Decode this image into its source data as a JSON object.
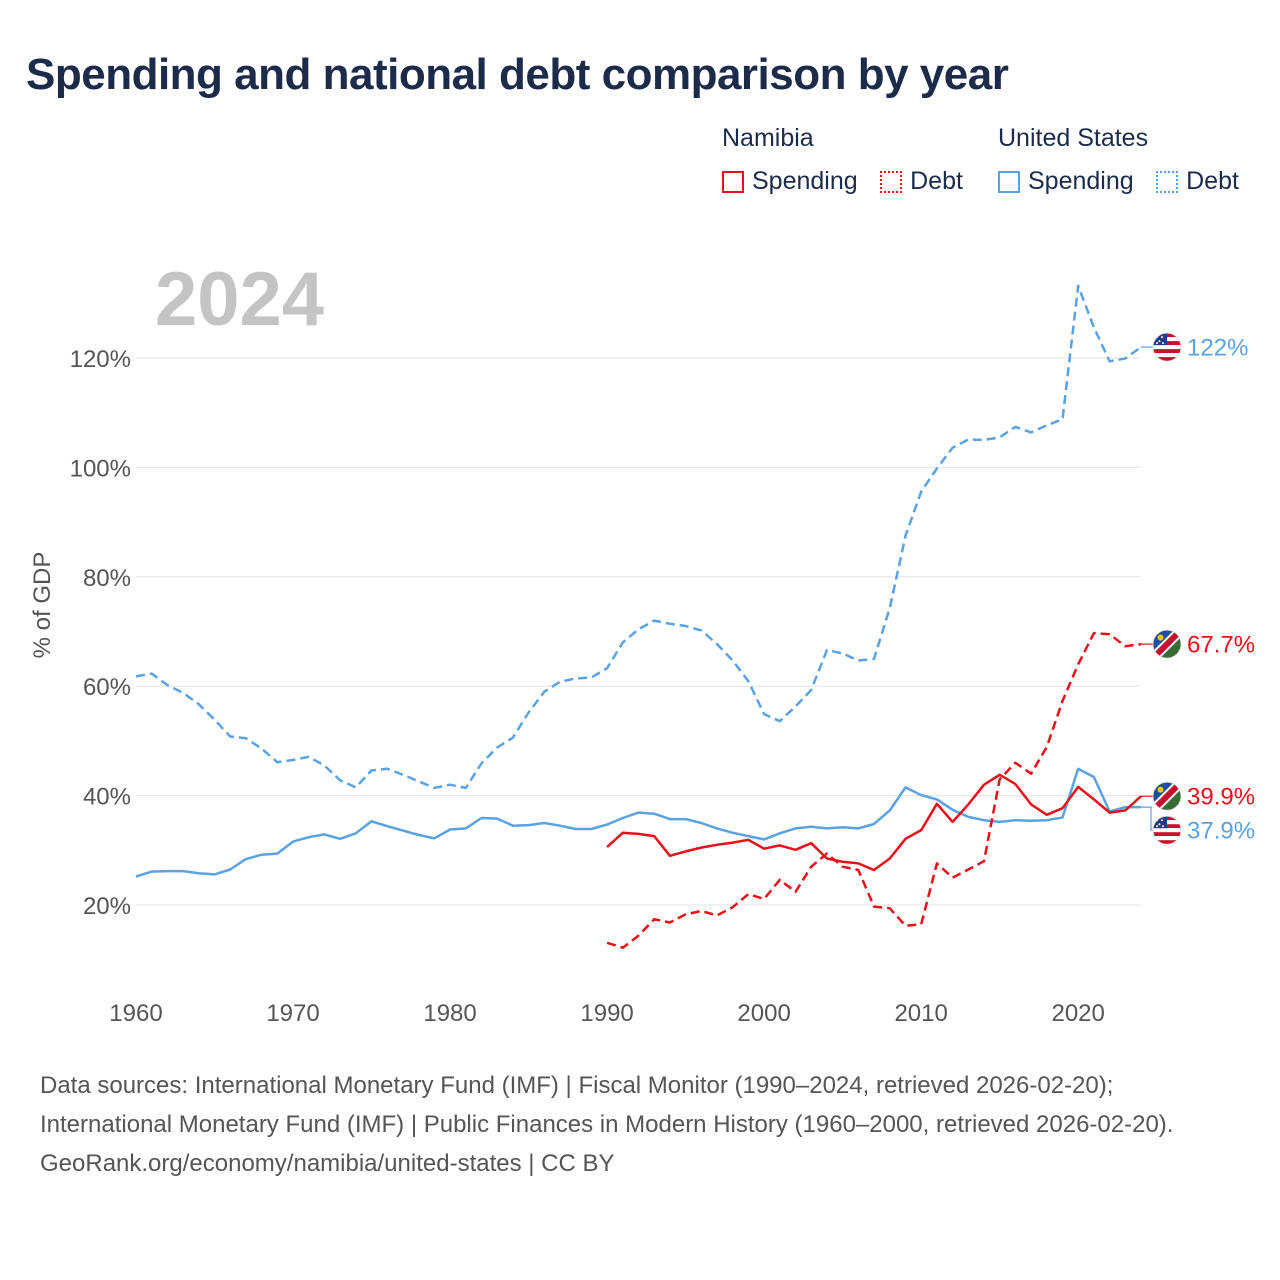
{
  "title": "Spending and national debt comparison by year",
  "legend": {
    "groups": [
      {
        "country": "Namibia",
        "color": "#e8101a",
        "items": [
          "Spending",
          "Debt"
        ]
      },
      {
        "country": "United States",
        "color": "#5aa2e2",
        "items": [
          "Spending",
          "Debt"
        ]
      }
    ]
  },
  "colors": {
    "namibia": "#e8101a",
    "united_states": "#5aa2e2"
  },
  "footer": {
    "sources": "Data sources: International Monetary Fund (IMF) | Fiscal Monitor (1990–2024, retrieved 2026-02-20); International Monetary Fund (IMF) | Public Finances in Modern History (1960–2000, retrieved 2026-02-20).",
    "credit": "GeoRank.org/economy/namibia/united-states | CC BY"
  },
  "chart_data": {
    "type": "line",
    "title": "Spending and national debt comparison by year",
    "year_label": "2024",
    "xlabel": "",
    "ylabel": "% of GDP",
    "xlim": [
      1960,
      2024
    ],
    "ylim": [
      3,
      137
    ],
    "xticks": [
      1960,
      1970,
      1980,
      1990,
      2000,
      2010,
      2020
    ],
    "xtick_labels": [
      "1960",
      "1970",
      "1980",
      "1990",
      "2000",
      "2010",
      "2020"
    ],
    "yticks": [
      20,
      40,
      60,
      80,
      100,
      120
    ],
    "ytick_labels": [
      "20%",
      "40%",
      "60%",
      "80%",
      "100%",
      "120%"
    ],
    "grid": true,
    "series": [
      {
        "name": "United States Debt",
        "country": "United States",
        "kind": "debt",
        "color": "#5aa2e2",
        "dash": "dashed",
        "end_label": "122%",
        "flag": "us",
        "x": [
          1960,
          1961,
          1962,
          1963,
          1964,
          1965,
          1966,
          1967,
          1968,
          1969,
          1970,
          1971,
          1972,
          1973,
          1974,
          1975,
          1976,
          1977,
          1978,
          1979,
          1980,
          1981,
          1982,
          1983,
          1984,
          1985,
          1986,
          1987,
          1988,
          1989,
          1990,
          1991,
          1992,
          1993,
          1994,
          1995,
          1996,
          1997,
          1998,
          1999,
          2000,
          2001,
          2002,
          2003,
          2004,
          2005,
          2006,
          2007,
          2008,
          2009,
          2010,
          2011,
          2012,
          2013,
          2014,
          2015,
          2016,
          2017,
          2018,
          2019,
          2020,
          2021,
          2022,
          2023,
          2024
        ],
        "y": [
          61.8,
          62.3,
          60.2,
          58.8,
          56.7,
          53.9,
          50.8,
          50.5,
          48.6,
          46.1,
          46.5,
          47.1,
          45.5,
          42.8,
          41.5,
          44.6,
          44.9,
          43.8,
          42.6,
          41.4,
          42.0,
          41.4,
          45.9,
          48.8,
          50.6,
          55.2,
          59.0,
          60.8,
          61.4,
          61.6,
          63.3,
          68.0,
          70.4,
          72.0,
          71.4,
          71.0,
          70.2,
          67.7,
          64.7,
          60.9,
          54.9,
          53.6,
          56.3,
          59.3,
          66.6,
          66.0,
          64.7,
          65.0,
          74.3,
          87.5,
          95.6,
          99.8,
          103.6,
          105.1,
          105.0,
          105.5,
          107.4,
          106.4,
          107.7,
          108.8,
          133.2,
          125.6,
          119.4,
          119.9,
          122.0
        ]
      },
      {
        "name": "United States Spending",
        "country": "United States",
        "kind": "spending",
        "color": "#5aa2e2",
        "dash": "solid",
        "end_label": "37.9%",
        "flag": "us",
        "x": [
          1960,
          1961,
          1962,
          1963,
          1964,
          1965,
          1966,
          1967,
          1968,
          1969,
          1970,
          1971,
          1972,
          1973,
          1974,
          1975,
          1976,
          1977,
          1978,
          1979,
          1980,
          1981,
          1982,
          1983,
          1984,
          1985,
          1986,
          1987,
          1988,
          1989,
          1990,
          1991,
          1992,
          1993,
          1994,
          1995,
          1996,
          1997,
          1998,
          1999,
          2000,
          2001,
          2002,
          2003,
          2004,
          2005,
          2006,
          2007,
          2008,
          2009,
          2010,
          2011,
          2012,
          2013,
          2014,
          2015,
          2016,
          2017,
          2018,
          2019,
          2020,
          2021,
          2022,
          2023,
          2024
        ],
        "y": [
          25.2,
          26.1,
          26.2,
          26.2,
          25.8,
          25.6,
          26.5,
          28.4,
          29.2,
          29.4,
          31.6,
          32.4,
          32.9,
          32.1,
          33.1,
          35.3,
          34.4,
          33.6,
          32.8,
          32.2,
          33.8,
          34.0,
          35.9,
          35.8,
          34.5,
          34.6,
          35.0,
          34.5,
          33.9,
          33.9,
          34.7,
          35.9,
          36.9,
          36.7,
          35.7,
          35.7,
          35.0,
          34.0,
          33.2,
          32.6,
          32.0,
          33.1,
          34.0,
          34.3,
          34.0,
          34.2,
          34.0,
          34.8,
          37.3,
          41.5,
          40.1,
          39.3,
          37.4,
          36.1,
          35.5,
          35.2,
          35.5,
          35.4,
          35.5,
          36.0,
          44.9,
          43.4,
          37.1,
          37.9,
          37.9
        ]
      },
      {
        "name": "Namibia Debt",
        "country": "Namibia",
        "kind": "debt",
        "color": "#e8101a",
        "dash": "dashed",
        "end_label": "67.7%",
        "flag": "na",
        "x": [
          1990,
          1991,
          1992,
          1993,
          1994,
          1995,
          1996,
          1997,
          1998,
          1999,
          2000,
          2001,
          2002,
          2003,
          2004,
          2005,
          2006,
          2007,
          2008,
          2009,
          2010,
          2011,
          2012,
          2013,
          2014,
          2015,
          2016,
          2017,
          2018,
          2019,
          2020,
          2021,
          2022,
          2023,
          2024
        ],
        "y": [
          13.1,
          12.2,
          14.4,
          17.4,
          16.8,
          18.3,
          18.9,
          18.1,
          19.6,
          22.0,
          21.1,
          24.6,
          22.4,
          27.0,
          29.4,
          27.0,
          26.4,
          19.7,
          19.4,
          16.2,
          16.5,
          27.6,
          25.0,
          26.5,
          28.0,
          43.0,
          46.0,
          44.0,
          48.9,
          57.3,
          64.0,
          69.7,
          69.5,
          67.3,
          67.7
        ]
      },
      {
        "name": "Namibia Spending",
        "country": "Namibia",
        "kind": "spending",
        "color": "#e8101a",
        "dash": "solid",
        "end_label": "39.9%",
        "flag": "na",
        "x": [
          1990,
          1991,
          1992,
          1993,
          1994,
          1995,
          1996,
          1997,
          1998,
          1999,
          2000,
          2001,
          2002,
          2003,
          2004,
          2005,
          2006,
          2007,
          2008,
          2009,
          2010,
          2011,
          2012,
          2013,
          2014,
          2015,
          2016,
          2017,
          2018,
          2019,
          2020,
          2021,
          2022,
          2023,
          2024
        ],
        "y": [
          30.6,
          33.2,
          33.0,
          32.6,
          29.0,
          29.8,
          30.5,
          31.0,
          31.4,
          31.9,
          30.3,
          30.9,
          30.1,
          31.3,
          28.5,
          27.9,
          27.6,
          26.4,
          28.5,
          32.1,
          33.7,
          38.5,
          35.2,
          38.4,
          42.0,
          43.8,
          42.1,
          38.4,
          36.5,
          37.7,
          41.6,
          39.3,
          36.9,
          37.3,
          39.9
        ]
      }
    ]
  }
}
